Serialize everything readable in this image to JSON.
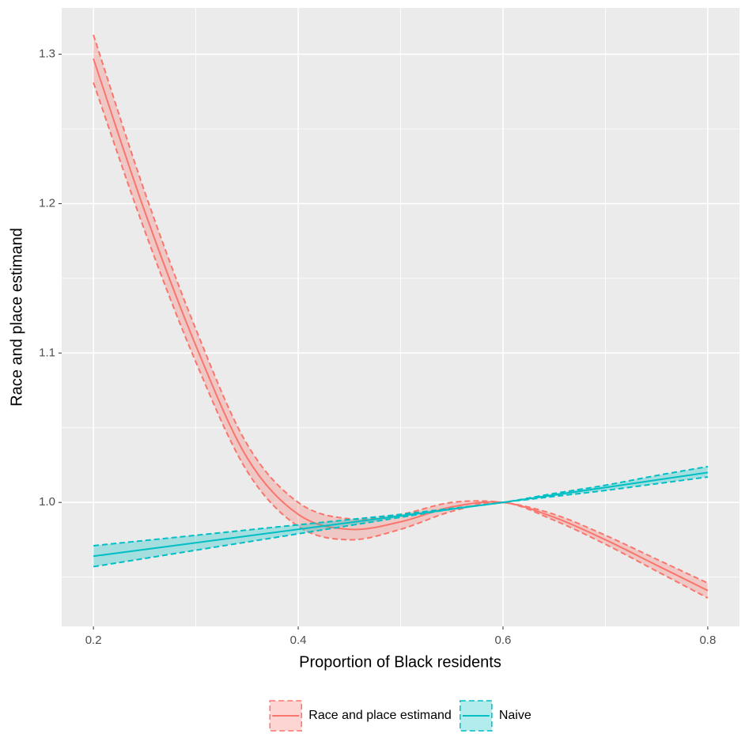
{
  "chart_data": {
    "type": "line",
    "x_label": "Proportion of Black residents",
    "y_label": "Race and place estimand",
    "x": [
      0.2,
      0.25,
      0.3,
      0.35,
      0.4,
      0.45,
      0.5,
      0.55,
      0.6,
      0.65,
      0.7,
      0.75,
      0.8
    ],
    "series": [
      {
        "name": "Race and place estimand",
        "color": "#F8766D",
        "values": [
          1.297,
          1.195,
          1.105,
          1.03,
          0.992,
          0.982,
          0.987,
          0.997,
          1.0,
          0.99,
          0.975,
          0.958,
          0.941
        ],
        "lower": [
          1.281,
          1.182,
          1.094,
          1.021,
          0.984,
          0.975,
          0.982,
          0.994,
          1.0,
          0.988,
          0.972,
          0.954,
          0.936
        ],
        "upper": [
          1.313,
          1.208,
          1.116,
          1.039,
          1.0,
          0.989,
          0.992,
          1.0,
          1.0,
          0.992,
          0.978,
          0.962,
          0.946
        ]
      },
      {
        "name": "Naive",
        "color": "#00BFC4",
        "values": [
          0.964,
          0.9685,
          0.973,
          0.9775,
          0.982,
          0.9865,
          0.991,
          0.9955,
          1.0,
          1.005,
          1.01,
          1.015,
          1.02
        ],
        "lower": [
          0.957,
          0.9625,
          0.968,
          0.9735,
          0.979,
          0.9845,
          0.99,
          0.9955,
          1.0,
          1.004,
          1.008,
          1.0125,
          1.017
        ],
        "upper": [
          0.971,
          0.9745,
          0.978,
          0.9815,
          0.985,
          0.9885,
          0.992,
          0.996,
          1.0,
          1.006,
          1.0115,
          1.018,
          1.024
        ]
      }
    ],
    "xlim": [
      0.169,
      0.831
    ],
    "ylim": [
      0.917,
      1.331
    ],
    "xticks": [
      0.2,
      0.4,
      0.6,
      0.8
    ],
    "yticks": [
      {
        "value": 1.0,
        "label": "1.0"
      },
      1.1,
      1.2,
      1.3
    ],
    "x_minor_ticks": [
      0.3,
      0.5,
      0.7
    ],
    "y_minor_ticks": [
      0.95,
      1.05,
      1.15,
      1.25
    ],
    "grid": true,
    "legend_position": "bottom"
  }
}
